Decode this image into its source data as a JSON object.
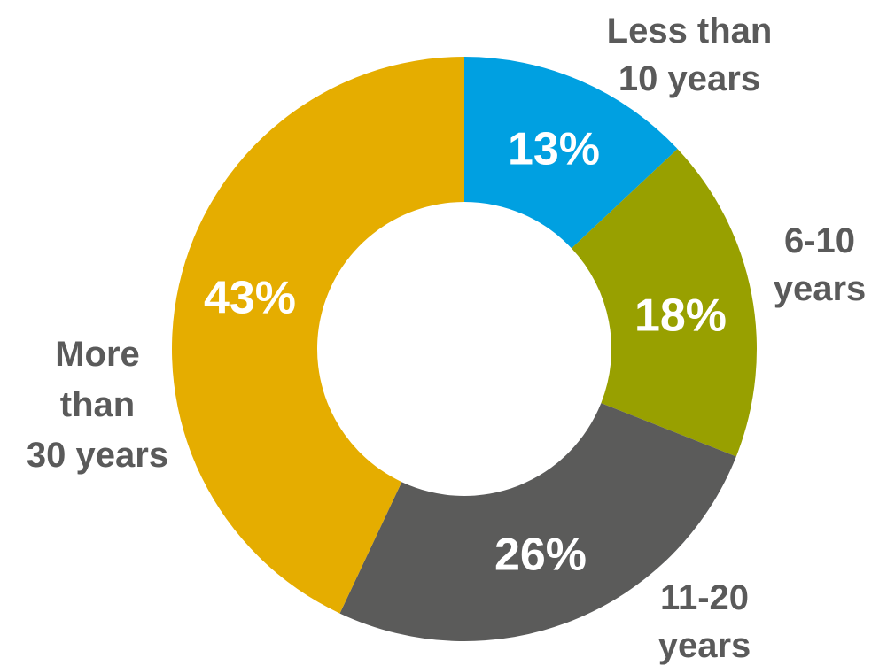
{
  "chart_data": {
    "type": "pie",
    "variant": "donut",
    "categories": [
      [
        "Less than",
        "10 years"
      ],
      [
        "6-10",
        "years"
      ],
      [
        "11-20",
        "years"
      ],
      [
        "More",
        "than",
        "30 years"
      ]
    ],
    "values": [
      13,
      18,
      26,
      43
    ],
    "value_labels": [
      "13%",
      "18%",
      "26%",
      "43%"
    ],
    "colors": [
      "#00A0E1",
      "#98A000",
      "#5B5B5A",
      "#E5AD00"
    ],
    "start_angle": "12 o'clock",
    "direction": "clockwise",
    "legend": "none"
  }
}
